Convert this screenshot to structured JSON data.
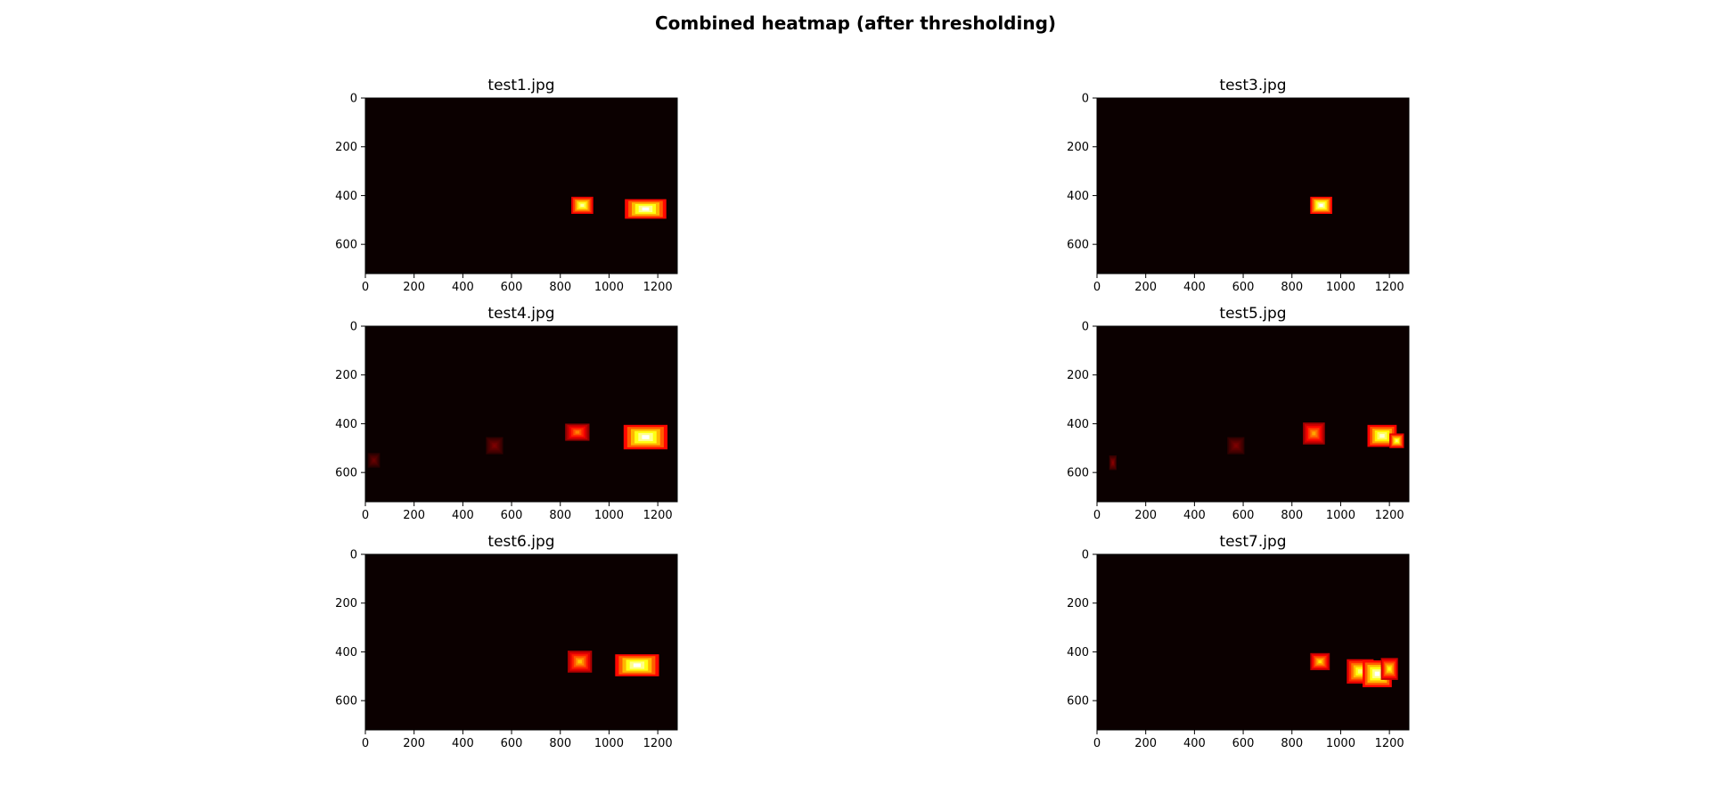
{
  "figure": {
    "title": "Combined heatmap (after thresholding)"
  },
  "chart_data": [
    {
      "type": "heatmap",
      "title": "test1.jpg",
      "xlim": [
        0,
        1280
      ],
      "ylim": [
        720,
        0
      ],
      "colormap": "hot",
      "xticks": [
        0,
        200,
        400,
        600,
        800,
        1000,
        1200
      ],
      "yticks": [
        0,
        200,
        400,
        600
      ],
      "blobs": [
        {
          "x": 890,
          "y": 440,
          "w": 90,
          "h": 70,
          "intensity": 0.9
        },
        {
          "x": 1150,
          "y": 455,
          "w": 170,
          "h": 80,
          "intensity": 1.0
        }
      ]
    },
    {
      "type": "heatmap",
      "title": "test3.jpg",
      "xlim": [
        0,
        1280
      ],
      "ylim": [
        720,
        0
      ],
      "colormap": "hot",
      "xticks": [
        0,
        200,
        400,
        600,
        800,
        1000,
        1200
      ],
      "yticks": [
        0,
        200,
        400,
        600
      ],
      "blobs": [
        {
          "x": 920,
          "y": 440,
          "w": 90,
          "h": 70,
          "intensity": 1.0
        }
      ]
    },
    {
      "type": "heatmap",
      "title": "test4.jpg",
      "xlim": [
        0,
        1280
      ],
      "ylim": [
        720,
        0
      ],
      "colormap": "hot",
      "xticks": [
        0,
        200,
        400,
        600,
        800,
        1000,
        1200
      ],
      "yticks": [
        0,
        200,
        400,
        600
      ],
      "blobs": [
        {
          "x": 35,
          "y": 550,
          "w": 50,
          "h": 60,
          "intensity": 0.15
        },
        {
          "x": 530,
          "y": 490,
          "w": 70,
          "h": 70,
          "intensity": 0.18
        },
        {
          "x": 870,
          "y": 435,
          "w": 100,
          "h": 70,
          "intensity": 0.55
        },
        {
          "x": 1150,
          "y": 455,
          "w": 180,
          "h": 100,
          "intensity": 1.0
        }
      ]
    },
    {
      "type": "heatmap",
      "title": "test5.jpg",
      "xlim": [
        0,
        1280
      ],
      "ylim": [
        720,
        0
      ],
      "colormap": "hot",
      "xticks": [
        0,
        200,
        400,
        600,
        800,
        1000,
        1200
      ],
      "yticks": [
        0,
        200,
        400,
        600
      ],
      "blobs": [
        {
          "x": 65,
          "y": 560,
          "w": 30,
          "h": 60,
          "intensity": 0.2
        },
        {
          "x": 570,
          "y": 490,
          "w": 70,
          "h": 70,
          "intensity": 0.18
        },
        {
          "x": 890,
          "y": 440,
          "w": 90,
          "h": 90,
          "intensity": 0.6
        },
        {
          "x": 1170,
          "y": 450,
          "w": 120,
          "h": 90,
          "intensity": 0.95
        },
        {
          "x": 1230,
          "y": 470,
          "w": 60,
          "h": 60,
          "intensity": 0.85
        }
      ]
    },
    {
      "type": "heatmap",
      "title": "test6.jpg",
      "xlim": [
        0,
        1280
      ],
      "ylim": [
        720,
        0
      ],
      "colormap": "hot",
      "xticks": [
        0,
        200,
        400,
        600,
        800,
        1000,
        1200
      ],
      "yticks": [
        0,
        200,
        400,
        600
      ],
      "blobs": [
        {
          "x": 880,
          "y": 440,
          "w": 100,
          "h": 90,
          "intensity": 0.65
        },
        {
          "x": 1115,
          "y": 455,
          "w": 180,
          "h": 90,
          "intensity": 1.0
        }
      ]
    },
    {
      "type": "heatmap",
      "title": "test7.jpg",
      "xlim": [
        0,
        1280
      ],
      "ylim": [
        720,
        0
      ],
      "colormap": "hot",
      "xticks": [
        0,
        200,
        400,
        600,
        800,
        1000,
        1200
      ],
      "yticks": [
        0,
        200,
        400,
        600
      ],
      "blobs": [
        {
          "x": 915,
          "y": 440,
          "w": 80,
          "h": 70,
          "intensity": 0.7
        },
        {
          "x": 1080,
          "y": 480,
          "w": 110,
          "h": 100,
          "intensity": 0.85
        },
        {
          "x": 1150,
          "y": 490,
          "w": 120,
          "h": 110,
          "intensity": 1.0
        },
        {
          "x": 1200,
          "y": 470,
          "w": 70,
          "h": 90,
          "intensity": 0.75
        }
      ]
    }
  ]
}
